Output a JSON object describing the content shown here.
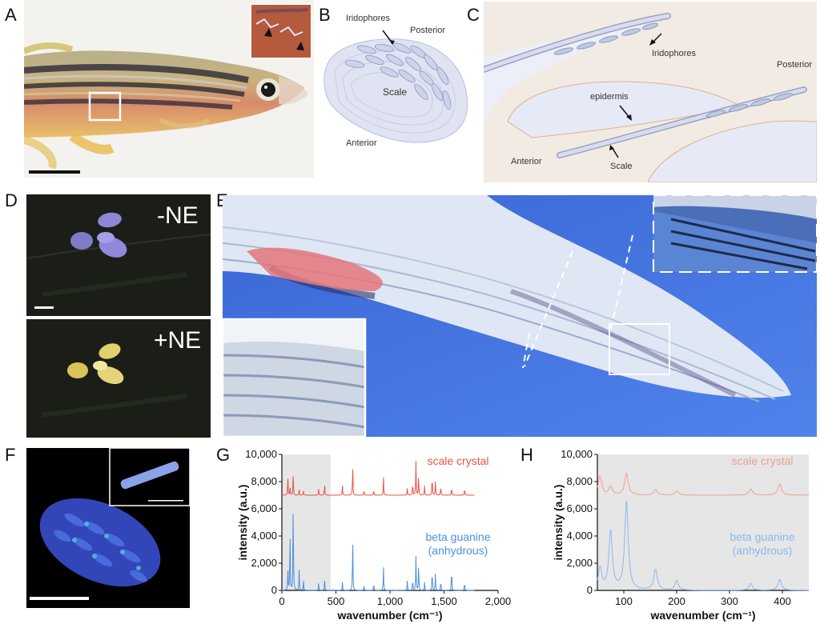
{
  "panels": {
    "a": {
      "letter": "A"
    },
    "b": {
      "letter": "B",
      "labels": {
        "iridophores": "Iridophores",
        "posterior": "Posterior",
        "scale": "Scale",
        "anterior": "Anterior"
      }
    },
    "c": {
      "letter": "C",
      "labels": {
        "iridophores": "Iridophores",
        "posterior": "Posterior",
        "epidermis": "epidermis",
        "anterior": "Anterior",
        "scale": "Scale"
      }
    },
    "d": {
      "letter": "D",
      "minus": "-NE",
      "plus": "+NE"
    },
    "e": {
      "letter": "E"
    },
    "f": {
      "letter": "F"
    },
    "g": {
      "letter": "G"
    },
    "h": {
      "letter": "H"
    }
  },
  "colors": {
    "scale_crystal": "#e8543f",
    "beta_guanine": "#4a8fe0",
    "scale_crystal_light": "#f0a08f",
    "beta_guanine_light": "#8ab8ec",
    "shade": "#e6e6e6"
  },
  "chart_data": [
    {
      "type": "line",
      "panel": "G",
      "xlabel": "wavenumber (cm⁻¹)",
      "ylabel": "intensity (a.u.)",
      "xlim": [
        0,
        2000
      ],
      "ylim": [
        0,
        10000
      ],
      "xticks": [
        "0",
        "500",
        "1,000",
        "1,500",
        "2,000"
      ],
      "yticks": [
        "0",
        "2,000",
        "4,000",
        "6,000",
        "8,000",
        "10,000"
      ],
      "shaded_region": [
        0,
        450
      ],
      "series": [
        {
          "name": "scale crystal",
          "baseline": 7000,
          "peaks": [
            [
              55,
              1400
            ],
            [
              75,
              600
            ],
            [
              105,
              1600
            ],
            [
              160,
              400
            ],
            [
              200,
              300
            ],
            [
              340,
              450
            ],
            [
              395,
              800
            ],
            [
              560,
              700
            ],
            [
              655,
              2200
            ],
            [
              760,
              300
            ],
            [
              850,
              400
            ],
            [
              940,
              1300
            ],
            [
              1160,
              500
            ],
            [
              1210,
              900
            ],
            [
              1240,
              2500
            ],
            [
              1265,
              1400
            ],
            [
              1320,
              700
            ],
            [
              1390,
              1400
            ],
            [
              1420,
              1000
            ],
            [
              1470,
              700
            ],
            [
              1570,
              600
            ],
            [
              1690,
              500
            ]
          ]
        },
        {
          "name": "beta guanine\n(anhydrous)",
          "baseline": 0,
          "peaks": [
            [
              55,
              1600
            ],
            [
              75,
              4300
            ],
            [
              105,
              6500
            ],
            [
              160,
              1500
            ],
            [
              200,
              700
            ],
            [
              340,
              500
            ],
            [
              395,
              800
            ],
            [
              560,
              600
            ],
            [
              655,
              3900
            ],
            [
              760,
              300
            ],
            [
              850,
              500
            ],
            [
              940,
              1700
            ],
            [
              1160,
              700
            ],
            [
              1210,
              800
            ],
            [
              1240,
              2500
            ],
            [
              1265,
              1900
            ],
            [
              1320,
              600
            ],
            [
              1390,
              1500
            ],
            [
              1420,
              1200
            ],
            [
              1470,
              700
            ],
            [
              1570,
              1600
            ],
            [
              1690,
              600
            ]
          ]
        }
      ]
    },
    {
      "type": "line",
      "panel": "H",
      "xlabel": "wavenumber (cm⁻¹)",
      "ylabel": "intensity (a.u.)",
      "xlim": [
        50,
        450
      ],
      "ylim": [
        0,
        10000
      ],
      "xticks": [
        "100",
        "200",
        "300",
        "400"
      ],
      "yticks": [
        "0",
        "2,000",
        "4,000",
        "6,000",
        "8,000",
        "10,000"
      ],
      "series": [
        {
          "name": "scale crystal",
          "baseline": 7000,
          "peaks": [
            [
              55,
              1400
            ],
            [
              75,
              600
            ],
            [
              105,
              1600
            ],
            [
              160,
              400
            ],
            [
              200,
              300
            ],
            [
              340,
              450
            ],
            [
              395,
              800
            ]
          ]
        },
        {
          "name": "beta guanine\n(anhydrous)",
          "baseline": 0,
          "peaks": [
            [
              55,
              1600
            ],
            [
              75,
              4300
            ],
            [
              105,
              6500
            ],
            [
              160,
              1500
            ],
            [
              200,
              700
            ],
            [
              340,
              500
            ],
            [
              395,
              800
            ]
          ]
        }
      ]
    }
  ]
}
